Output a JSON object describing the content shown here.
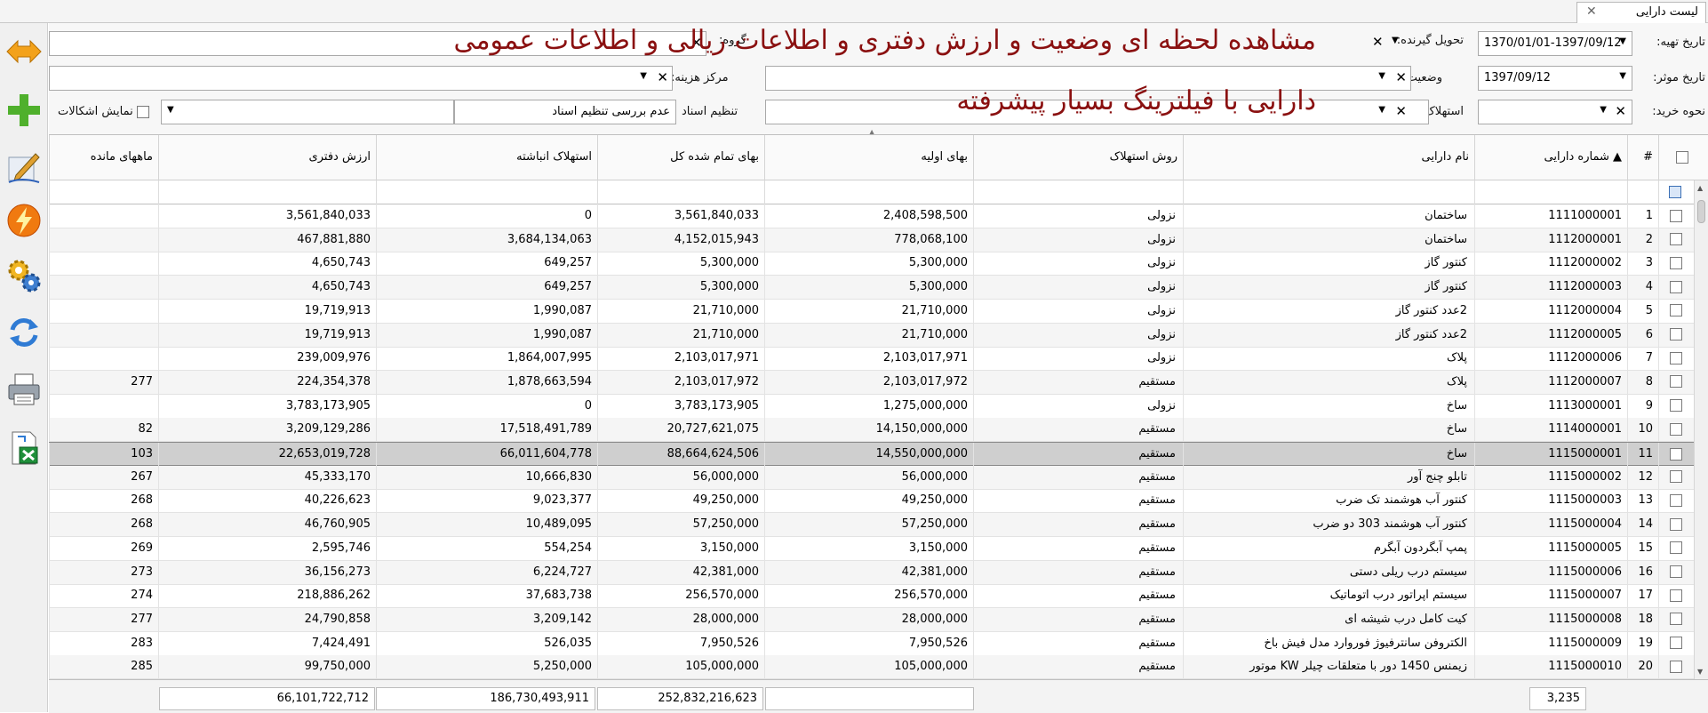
{
  "tab": {
    "title": "لیست دارایی",
    "close": "✕"
  },
  "overlay": {
    "line1": "مشاهده لحظه ای وضعیت و ارزش دفتری و اطلاعات ریالی و اطلاعات عمومی",
    "line2": "دارایی با فیلترینگ بسیار پیشرفته"
  },
  "filters": {
    "prep_date_label": "تاریخ تهیه:",
    "prep_date_value": "1370/01/01-1397/09/12",
    "effective_date_label": "تاریخ موثر:",
    "effective_date_value": "1397/09/12",
    "purchase_type_label": "نحوه خرید:",
    "receiver_label": "تحویل گیرنده:",
    "status_label": "وضعیت:",
    "depreciation_label": "استهلاک:",
    "group_label": "گروه:",
    "cost_center_label": "مرکز هزینه:",
    "docs_label": "تنظیم اسناد",
    "docs_value": "عدم بررسی تنظیم اسناد",
    "show_issues_label": "نمایش اشکالات"
  },
  "columns": {
    "row_no": "#",
    "asset_no": "شماره دارایی",
    "asset_name": "نام دارایی",
    "dep_method": "روش استهلاک",
    "initial_price": "بهای اولیه",
    "total_cost": "بهای تمام شده کل",
    "accum_dep": "استهلاک انباشته",
    "book_value": "ارزش دفتری",
    "months_left": "ماههای مانده"
  },
  "rows": [
    {
      "n": "1",
      "no": "1111000001",
      "name": "ساختمان",
      "method": "نزولی",
      "init": "2,408,598,500",
      "total": "3,561,840,033",
      "accum": "0",
      "book": "3,561,840,033",
      "months": ""
    },
    {
      "n": "2",
      "no": "1112000001",
      "name": "ساختمان",
      "method": "نزولی",
      "init": "778,068,100",
      "total": "4,152,015,943",
      "accum": "3,684,134,063",
      "book": "467,881,880",
      "months": ""
    },
    {
      "n": "3",
      "no": "1112000002",
      "name": "کنتور گاز",
      "method": "نزولی",
      "init": "5,300,000",
      "total": "5,300,000",
      "accum": "649,257",
      "book": "4,650,743",
      "months": ""
    },
    {
      "n": "4",
      "no": "1112000003",
      "name": "کنتور گاز",
      "method": "نزولی",
      "init": "5,300,000",
      "total": "5,300,000",
      "accum": "649,257",
      "book": "4,650,743",
      "months": ""
    },
    {
      "n": "5",
      "no": "1112000004",
      "name": "2عدد کنتور گاز",
      "method": "نزولی",
      "init": "21,710,000",
      "total": "21,710,000",
      "accum": "1,990,087",
      "book": "19,719,913",
      "months": ""
    },
    {
      "n": "6",
      "no": "1112000005",
      "name": "2عدد کنتور گاز",
      "method": "نزولی",
      "init": "21,710,000",
      "total": "21,710,000",
      "accum": "1,990,087",
      "book": "19,719,913",
      "months": ""
    },
    {
      "n": "7",
      "no": "1112000006",
      "name": "پلاک",
      "method": "نزولی",
      "init": "2,103,017,971",
      "total": "2,103,017,971",
      "accum": "1,864,007,995",
      "book": "239,009,976",
      "months": ""
    },
    {
      "n": "8",
      "no": "1112000007",
      "name": "پلاک",
      "method": "مستقیم",
      "init": "2,103,017,972",
      "total": "2,103,017,972",
      "accum": "1,878,663,594",
      "book": "224,354,378",
      "months": "277"
    },
    {
      "n": "9",
      "no": "1113000001",
      "name": "ساخ",
      "method": "نزولی",
      "init": "1,275,000,000",
      "total": "3,783,173,905",
      "accum": "0",
      "book": "3,783,173,905",
      "months": ""
    },
    {
      "n": "10",
      "no": "1114000001",
      "name": "ساخ",
      "method": "مستقیم",
      "init": "14,150,000,000",
      "total": "20,727,621,075",
      "accum": "17,518,491,789",
      "book": "3,209,129,286",
      "months": "82"
    },
    {
      "n": "11",
      "no": "1115000001",
      "name": "ساخ",
      "method": "مستقیم",
      "init": "14,550,000,000",
      "total": "88,664,624,506",
      "accum": "66,011,604,778",
      "book": "22,653,019,728",
      "months": "103"
    },
    {
      "n": "12",
      "no": "1115000002",
      "name": "تابلو چنج آور",
      "method": "مستقیم",
      "init": "56,000,000",
      "total": "56,000,000",
      "accum": "10,666,830",
      "book": "45,333,170",
      "months": "267"
    },
    {
      "n": "13",
      "no": "1115000003",
      "name": "کنتور آب هوشمند تک ضرب",
      "method": "مستقیم",
      "init": "49,250,000",
      "total": "49,250,000",
      "accum": "9,023,377",
      "book": "40,226,623",
      "months": "268"
    },
    {
      "n": "14",
      "no": "1115000004",
      "name": "کنتور آب هوشمند 303 دو ضرب",
      "method": "مستقیم",
      "init": "57,250,000",
      "total": "57,250,000",
      "accum": "10,489,095",
      "book": "46,760,905",
      "months": "268"
    },
    {
      "n": "15",
      "no": "1115000005",
      "name": "پمپ آبگردون آبگرم",
      "method": "مستقیم",
      "init": "3,150,000",
      "total": "3,150,000",
      "accum": "554,254",
      "book": "2,595,746",
      "months": "269"
    },
    {
      "n": "16",
      "no": "1115000006",
      "name": "سیستم درب ریلی دستی",
      "method": "مستقیم",
      "init": "42,381,000",
      "total": "42,381,000",
      "accum": "6,224,727",
      "book": "36,156,273",
      "months": "273"
    },
    {
      "n": "17",
      "no": "1115000007",
      "name": "سیستم اپراتور درب اتوماتیک",
      "method": "مستقیم",
      "init": "256,570,000",
      "total": "256,570,000",
      "accum": "37,683,738",
      "book": "218,886,262",
      "months": "274"
    },
    {
      "n": "18",
      "no": "1115000008",
      "name": "کیت کامل درب شیشه ای",
      "method": "مستقیم",
      "init": "28,000,000",
      "total": "28,000,000",
      "accum": "3,209,142",
      "book": "24,790,858",
      "months": "277"
    },
    {
      "n": "19",
      "no": "1115000009",
      "name": "الکتروفن سانترفیوژ فوروارد مدل فیش باخ",
      "method": "مستقیم",
      "init": "7,950,526",
      "total": "7,950,526",
      "accum": "526,035",
      "book": "7,424,491",
      "months": "283"
    },
    {
      "n": "20",
      "no": "1115000010",
      "name": "زیمنس 1450 دور با متعلقات چیلر KW موتور",
      "method": "مستقیم",
      "init": "105,000,000",
      "total": "105,000,000",
      "accum": "5,250,000",
      "book": "99,750,000",
      "months": "285"
    }
  ],
  "footer": {
    "count": "3,235",
    "total_cost_sum": "252,832,216,623",
    "accum_dep_sum": "186,730,493,911",
    "book_value_sum": "66,101,722,712"
  },
  "colors": {
    "overlay_text": "#8a1010",
    "selected_row": "#cfcfcf",
    "alt_row": "#f5f5f5"
  }
}
